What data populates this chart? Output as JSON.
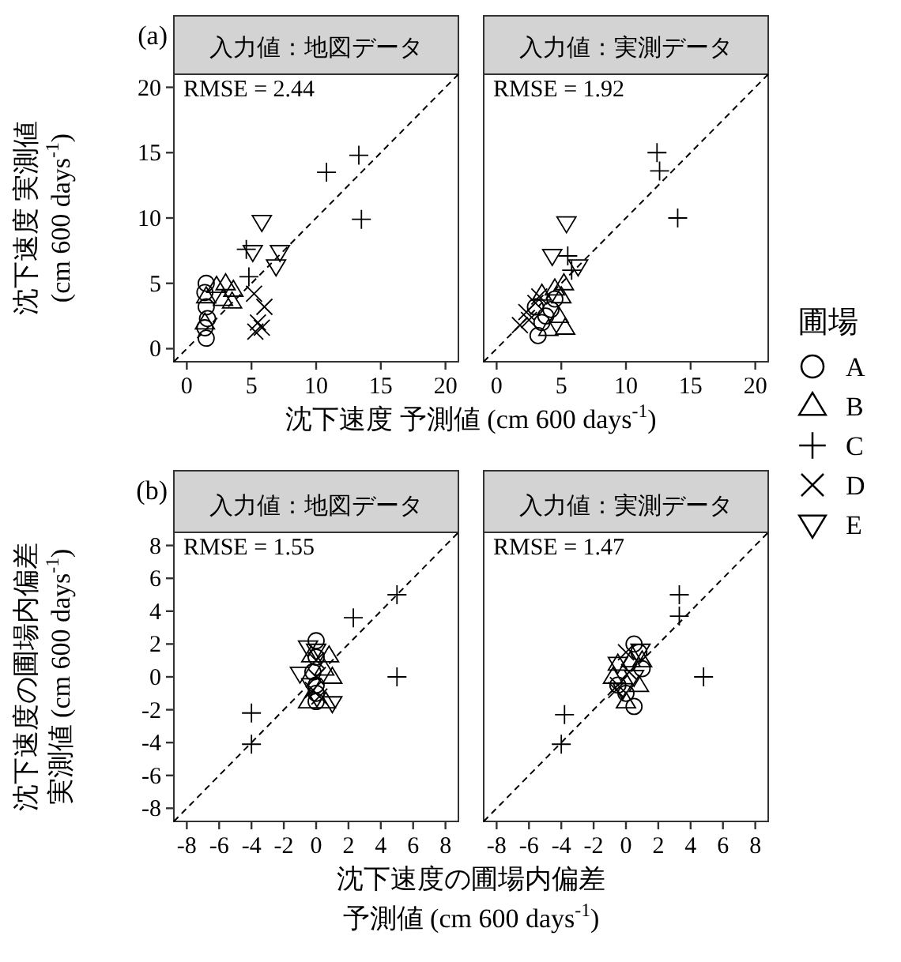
{
  "chart_data": [
    {
      "type": "scatter",
      "title": "入力値：地図データ",
      "ylabel": "沈下速度 実測値 (cm 600 days$^{-1}$)",
      "xlabel": "沈下速度 予測値 (cm 600 days$^{-1}$)",
      "legend_title": "圃場",
      "legend": "right",
      "annotations": [
        "(a)",
        "RMSE = 2.44"
      ],
      "xlim": [
        -1,
        21
      ],
      "ylim": [
        -1,
        21
      ],
      "xticks": [
        0,
        5,
        10,
        15,
        20
      ],
      "yticks": [
        0,
        5,
        10,
        15,
        20
      ],
      "series": [
        {
          "name": "A",
          "color": "#000000",
          "marker": "circle",
          "x": [
            1.5,
            1.4,
            1.5,
            1.6,
            1.4,
            1.5
          ],
          "values": [
            5.0,
            4.3,
            3.2,
            2.3,
            1.6,
            0.8
          ]
        },
        {
          "name": "B",
          "color": "#000000",
          "marker": "triangle",
          "x": [
            1.5,
            2.3,
            3.0,
            3.6,
            3.5,
            2.8,
            1.4
          ],
          "values": [
            4.0,
            4.8,
            5.0,
            4.5,
            3.6,
            3.8,
            2.0
          ]
        },
        {
          "name": "C",
          "color": "#000000",
          "marker": "plus",
          "x": [
            10.8,
            13.3,
            13.5,
            4.6,
            4.8
          ],
          "values": [
            13.5,
            14.8,
            9.9,
            7.6,
            5.5
          ]
        },
        {
          "name": "D",
          "color": "#000000",
          "marker": "cross",
          "x": [
            5.2,
            6.0,
            5.5,
            5.3,
            5.8
          ],
          "values": [
            4.2,
            3.2,
            2.0,
            1.3,
            1.6
          ]
        },
        {
          "name": "E",
          "color": "#000000",
          "marker": "triangle_down",
          "x": [
            5.8,
            5.1,
            7.2,
            6.9
          ],
          "values": [
            9.7,
            7.4,
            7.4,
            6.3
          ]
        },
        {
          "type": "line",
          "color": "#000000",
          "line_style": "dashed",
          "x": [
            -1,
            21
          ],
          "values": [
            -1,
            21
          ]
        }
      ]
    },
    {
      "type": "scatter",
      "title": "入力値：実測データ",
      "tick_labels": "x",
      "annotations": [
        "RMSE = 1.92"
      ],
      "xlim": [
        -1,
        21
      ],
      "ylim": [
        -1,
        21
      ],
      "xticks": [
        0,
        5,
        10,
        15,
        20
      ],
      "series": [
        {
          "color": "#000000",
          "marker": "circle",
          "x": [
            3.2,
            3.5,
            3.8,
            4.2,
            4.5,
            3.0
          ],
          "values": [
            1.0,
            2.0,
            2.5,
            3.0,
            3.8,
            3.2
          ]
        },
        {
          "color": "#000000",
          "marker": "triangle",
          "x": [
            4.0,
            4.8,
            5.0,
            4.5,
            5.2,
            3.5,
            5.3
          ],
          "values": [
            1.5,
            2.5,
            4.0,
            4.6,
            5.0,
            4.2,
            1.6
          ]
        },
        {
          "color": "#000000",
          "marker": "plus",
          "x": [
            12.4,
            12.6,
            14.0,
            5.5,
            5.8
          ],
          "values": [
            15.0,
            13.6,
            10.0,
            7.1,
            6.0
          ]
        },
        {
          "color": "#000000",
          "marker": "cross",
          "x": [
            1.8,
            2.5,
            3.0,
            3.3,
            2.3
          ],
          "values": [
            1.8,
            2.2,
            3.5,
            4.0,
            2.8
          ]
        },
        {
          "color": "#000000",
          "marker": "triangle_down",
          "x": [
            5.4,
            4.3,
            6.3
          ],
          "values": [
            9.6,
            7.1,
            6.3
          ]
        },
        {
          "type": "line",
          "color": "#000000",
          "line_style": "dashed",
          "x": [
            -1,
            21
          ],
          "values": [
            -1,
            21
          ]
        }
      ]
    },
    {
      "type": "scatter",
      "title": "入力値：地図データ",
      "ylabel": "沈下速度の圃場内偏差実測値 (cm 600 days$^{-1}$)",
      "xlabel": "沈下速度の圃場内偏差予測値 (cm 600 days$^{-1}$)",
      "annotations": [
        "(b)",
        "RMSE = 1.55"
      ],
      "xlim": [
        -8.8,
        8.8
      ],
      "ylim": [
        -8.8,
        8.8
      ],
      "xticks": [
        -8,
        -6,
        -4,
        -2,
        0,
        2,
        4,
        6,
        8
      ],
      "yticks": [
        -8,
        -6,
        -4,
        -2,
        0,
        2,
        4,
        6,
        8
      ],
      "series": [
        {
          "color": "#000000",
          "marker": "circle",
          "x": [
            0,
            0,
            0,
            0,
            0,
            -0.2
          ],
          "values": [
            2.2,
            1.2,
            -0.5,
            -1.0,
            -1.5,
            0.3
          ]
        },
        {
          "color": "#000000",
          "marker": "triangle",
          "x": [
            0.8,
            0.5,
            1.0,
            -0.5,
            0.6,
            -0.3
          ],
          "values": [
            1.3,
            0.5,
            0,
            -1.5,
            -1.5,
            1.3
          ]
        },
        {
          "color": "#000000",
          "marker": "plus",
          "x": [
            -4.0,
            -4.0,
            2.3,
            5.0,
            5.0
          ],
          "values": [
            -2.2,
            -4.1,
            3.6,
            5.0,
            0
          ]
        },
        {
          "color": "#000000",
          "marker": "cross",
          "x": [
            0,
            -0.2,
            0.2,
            0
          ],
          "values": [
            1.0,
            -0.8,
            -1.2,
            0
          ]
        },
        {
          "color": "#000000",
          "marker": "triangle_down",
          "x": [
            -1.0,
            -0.5,
            1.0,
            0,
            -0.3
          ],
          "values": [
            0.2,
            1.8,
            -1.6,
            1.6,
            -0.5
          ]
        },
        {
          "type": "line",
          "color": "#000000",
          "line_style": "dashed",
          "x": [
            -8.8,
            8.8
          ],
          "values": [
            -8.8,
            8.8
          ]
        }
      ]
    },
    {
      "type": "scatter",
      "title": "入力値：実測データ",
      "tick_labels": "x",
      "annotations": [
        "RMSE = 1.47"
      ],
      "xlim": [
        -8.8,
        8.8
      ],
      "ylim": [
        -8.8,
        8.8
      ],
      "xticks": [
        -8,
        -6,
        -4,
        -2,
        0,
        2,
        4,
        6,
        8
      ],
      "series": [
        {
          "color": "#000000",
          "marker": "circle",
          "x": [
            0.5,
            0.8,
            -0.5,
            0,
            0.5,
            1.0
          ],
          "values": [
            2.0,
            1.5,
            -0.5,
            -1.0,
            -1.8,
            0.5
          ]
        },
        {
          "color": "#000000",
          "marker": "triangle",
          "x": [
            -0.8,
            -0.5,
            0.3,
            0.8,
            1.0,
            0
          ],
          "values": [
            0,
            0.8,
            1.0,
            -0.5,
            1.0,
            -1.5
          ]
        },
        {
          "color": "#000000",
          "marker": "plus",
          "x": [
            3.3,
            3.3,
            4.8,
            -3.8,
            -4.0
          ],
          "values": [
            5.0,
            3.7,
            0,
            -2.3,
            -4.1
          ]
        },
        {
          "color": "#000000",
          "marker": "cross",
          "x": [
            -0.5,
            -0.6,
            0.2,
            0
          ],
          "values": [
            -0.5,
            -0.8,
            0.3,
            1.5
          ]
        },
        {
          "color": "#000000",
          "marker": "triangle_down",
          "x": [
            -0.5,
            0.5,
            -0.2,
            0.9
          ],
          "values": [
            0.8,
            0,
            -0.8,
            1.6
          ]
        },
        {
          "type": "line",
          "color": "#000000",
          "line_style": "dashed",
          "x": [
            -8.8,
            8.8
          ],
          "values": [
            -8.8,
            8.8
          ]
        }
      ]
    }
  ]
}
